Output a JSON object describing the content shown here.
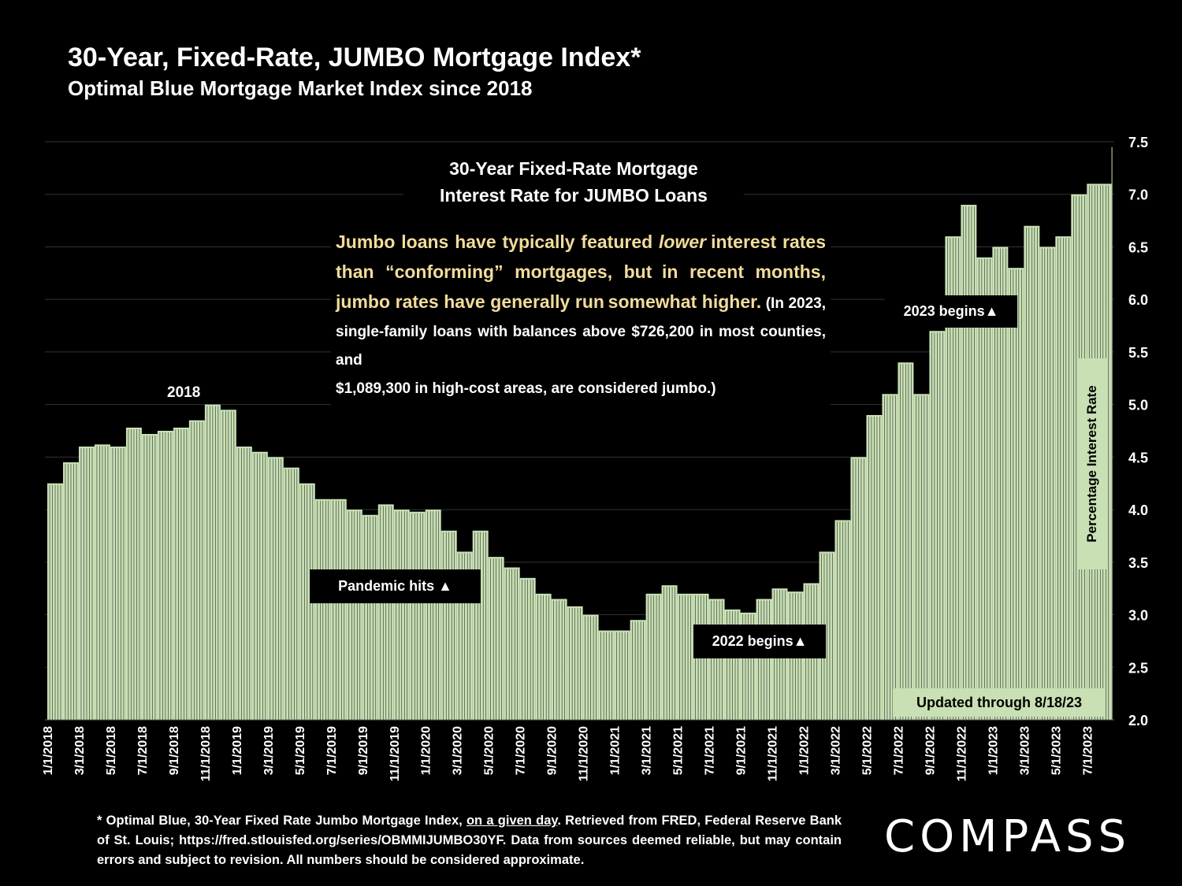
{
  "header": {
    "title": "30-Year, Fixed-Rate, JUMBO Mortgage Index*",
    "subtitle": "Optimal Blue Mortgage Market Index since 2018"
  },
  "chart_data": {
    "type": "bar",
    "title": "30-Year Fixed-Rate Mortgage Interest Rate for JUMBO Loans",
    "title_line1": "30-Year  Fixed-Rate  Mortgage",
    "title_line2": "Interest Rate for JUMBO Loans",
    "ylabel": "Percentage Interest Rate",
    "ylim": [
      2.0,
      7.5
    ],
    "yticks": [
      "2.0",
      "2.5",
      "3.0",
      "3.5",
      "4.0",
      "4.5",
      "5.0",
      "5.5",
      "6.0",
      "6.5",
      "7.0",
      "7.5"
    ],
    "grid": true,
    "bar_color": "#c8e0b4",
    "x_tick_labels": [
      "1/1/2018",
      "3/1/2018",
      "5/1/2018",
      "7/1/2018",
      "9/1/2018",
      "11/1/2018",
      "1/1/2019",
      "3/1/2019",
      "5/1/2019",
      "7/1/2019",
      "9/1/2019",
      "11/1/2019",
      "1/1/2020",
      "3/1/2020",
      "5/1/2020",
      "7/1/2020",
      "9/1/2020",
      "11/1/2020",
      "1/1/2021",
      "3/1/2021",
      "5/1/2021",
      "7/1/2021",
      "9/1/2021",
      "11/1/2021",
      "1/1/2022",
      "3/1/2022",
      "5/1/2022",
      "7/1/2022",
      "9/1/2022",
      "11/1/2022",
      "1/1/2023",
      "3/1/2023",
      "5/1/2023",
      "7/1/2023"
    ],
    "x": [
      "1/1/2018",
      "2/1/2018",
      "3/1/2018",
      "4/1/2018",
      "5/1/2018",
      "6/1/2018",
      "7/1/2018",
      "8/1/2018",
      "9/1/2018",
      "10/1/2018",
      "11/1/2018",
      "12/1/2018",
      "1/1/2019",
      "2/1/2019",
      "3/1/2019",
      "4/1/2019",
      "5/1/2019",
      "6/1/2019",
      "7/1/2019",
      "8/1/2019",
      "9/1/2019",
      "10/1/2019",
      "11/1/2019",
      "12/1/2019",
      "1/1/2020",
      "2/1/2020",
      "3/1/2020",
      "4/1/2020",
      "5/1/2020",
      "6/1/2020",
      "7/1/2020",
      "8/1/2020",
      "9/1/2020",
      "10/1/2020",
      "11/1/2020",
      "12/1/2020",
      "1/1/2021",
      "2/1/2021",
      "3/1/2021",
      "4/1/2021",
      "5/1/2021",
      "6/1/2021",
      "7/1/2021",
      "8/1/2021",
      "9/1/2021",
      "10/1/2021",
      "11/1/2021",
      "12/1/2021",
      "1/1/2022",
      "2/1/2022",
      "3/1/2022",
      "4/1/2022",
      "5/1/2022",
      "6/1/2022",
      "7/1/2022",
      "8/1/2022",
      "9/1/2022",
      "10/1/2022",
      "11/1/2022",
      "12/1/2022",
      "1/1/2023",
      "2/1/2023",
      "3/1/2023",
      "4/1/2023",
      "5/1/2023",
      "6/1/2023",
      "7/1/2023",
      "8/18/2023"
    ],
    "values": [
      4.25,
      4.45,
      4.6,
      4.62,
      4.6,
      4.78,
      4.72,
      4.75,
      4.78,
      4.85,
      5.0,
      4.95,
      4.6,
      4.55,
      4.5,
      4.4,
      4.25,
      4.1,
      4.1,
      4.0,
      3.95,
      4.05,
      4.0,
      3.98,
      4.0,
      3.8,
      3.6,
      3.8,
      3.55,
      3.45,
      3.35,
      3.2,
      3.15,
      3.08,
      3.0,
      2.85,
      2.85,
      2.95,
      3.2,
      3.28,
      3.2,
      3.2,
      3.15,
      3.05,
      3.02,
      3.15,
      3.25,
      3.22,
      3.3,
      3.6,
      3.9,
      4.5,
      4.9,
      5.1,
      5.4,
      5.1,
      5.7,
      6.6,
      6.9,
      6.4,
      6.5,
      6.3,
      6.7,
      6.5,
      6.6,
      7.0,
      7.1,
      7.45
    ]
  },
  "annotations": {
    "label_2018": "2018",
    "pandemic": "Pandemic hits ▲",
    "begins_2022": "2022 begins▲",
    "begins_2023": "2023 begins▲",
    "updated": "Updated through 8/18/23"
  },
  "note": {
    "line1": "Jumbo loans have typically featured ",
    "lower": "lower",
    "line2": "interest rates than “conforming” mortgages, but",
    "line3": "in recent months, jumbo rates have generally run",
    "line4_hl": "somewhat higher.",
    "line4_wt": " (In 2023, single-family loans with",
    "line5": "balances above $726,200 in most  counties, and",
    "line6": "$1,089,300 in high-cost areas, are considered jumbo.)"
  },
  "footnote": {
    "part1": "* Optimal Blue, 30-Year Fixed Rate Jumbo Mortgage Index, ",
    "underlined": "on a given day",
    "part2": ". Retrieved from FRED, Federal Reserve Bank of St. Louis; https://fred.stlouisfed.org/series/OBMMIJUMBO30YF. Data from sources deemed reliable, but may contain errors and subject to revision. All numbers should be considered approximate."
  },
  "brand": {
    "logo_text": "COMPASS"
  }
}
